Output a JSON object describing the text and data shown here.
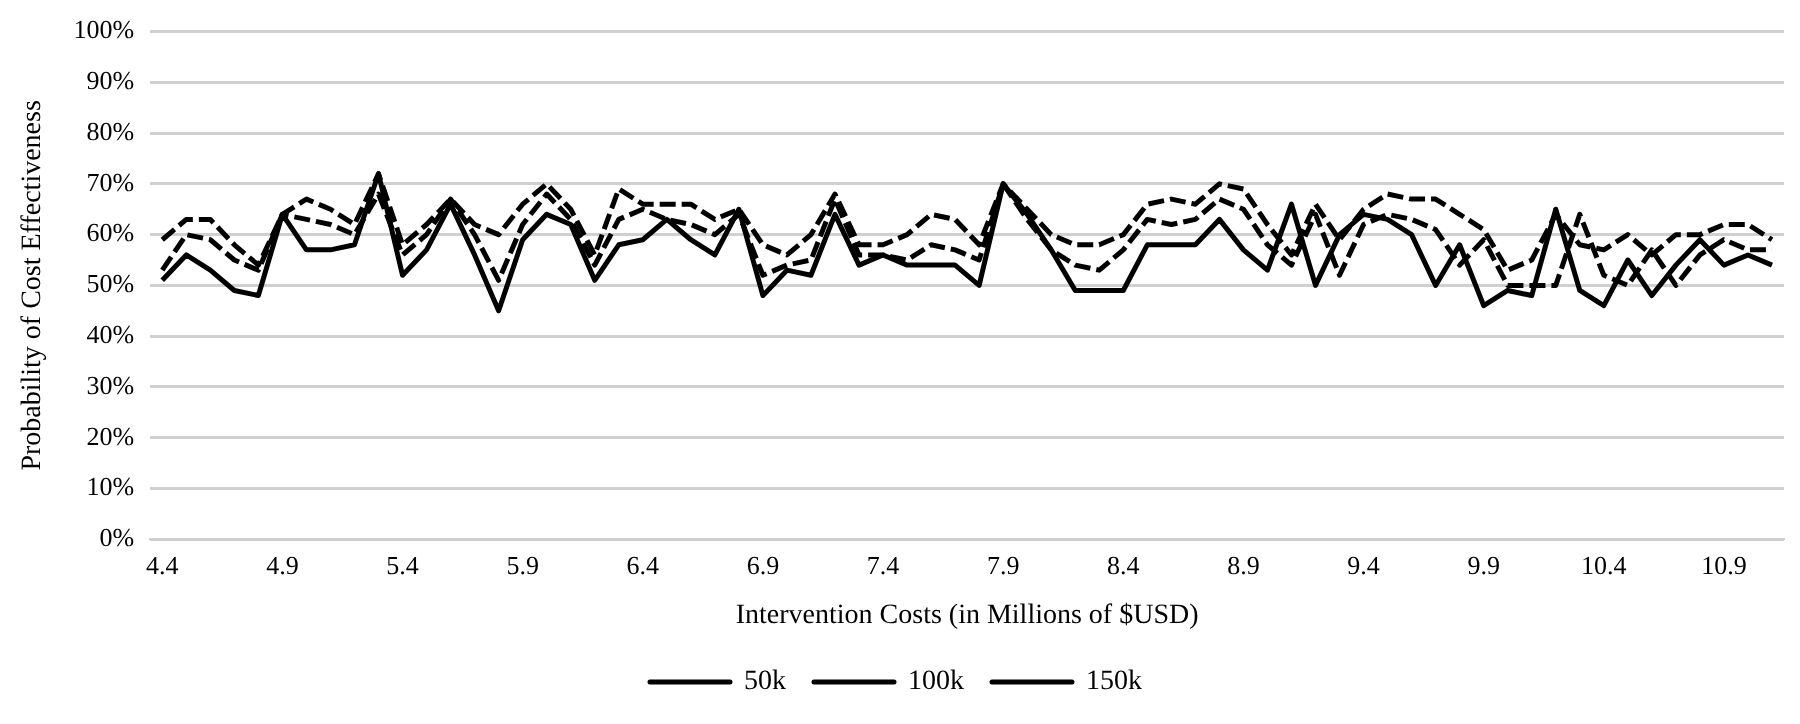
{
  "chart_data": {
    "type": "line",
    "xlabel": "Intervention Costs (in Millions of $USD)",
    "ylabel": "Probability of Cost Effectiveness",
    "categories": [
      "4.4",
      null,
      null,
      null,
      null,
      "4.9",
      null,
      null,
      null,
      null,
      "5.4",
      null,
      null,
      null,
      null,
      "5.9",
      null,
      null,
      null,
      null,
      "6.4",
      null,
      null,
      null,
      null,
      "6.9",
      null,
      null,
      null,
      null,
      "7.4",
      null,
      null,
      null,
      null,
      "7.9",
      null,
      null,
      null,
      null,
      "8.4",
      null,
      null,
      null,
      null,
      "8.9",
      null,
      null,
      null,
      null,
      "9.4",
      null,
      null,
      null,
      null,
      "9.9",
      null,
      null,
      null,
      null,
      "10.4",
      null,
      null,
      null,
      null,
      "10.9",
      null,
      null
    ],
    "series": [
      {
        "name": "50k",
        "color": "#000000",
        "line_style": "solid",
        "values": [
          51,
          56,
          53,
          49,
          48,
          64,
          57,
          57,
          58,
          72,
          52,
          57,
          66,
          56,
          45,
          59,
          64,
          62,
          51,
          58,
          59,
          63,
          59,
          56,
          65,
          48,
          53,
          52,
          64,
          54,
          56,
          54,
          54,
          54,
          50,
          70,
          64,
          57,
          49,
          49,
          49,
          58,
          58,
          58,
          63,
          57,
          53,
          66,
          50,
          60,
          64,
          63,
          60,
          50,
          58,
          46,
          49,
          48,
          65,
          49,
          46,
          55,
          48,
          54,
          59,
          54,
          56,
          54
        ]
      },
      {
        "name": "100k",
        "color": "#000000",
        "line_style": "dashed",
        "values": [
          53,
          60,
          59,
          55,
          53,
          64,
          63,
          62,
          60,
          68,
          56,
          60,
          67,
          60,
          51,
          62,
          68,
          63,
          54,
          63,
          65,
          63,
          62,
          60,
          64,
          52,
          54,
          55,
          67,
          56,
          56,
          55,
          58,
          57,
          55,
          70,
          63,
          57,
          54,
          53,
          57,
          63,
          62,
          63,
          67,
          65,
          58,
          54,
          64,
          52,
          62,
          64,
          63,
          61,
          54,
          59,
          50,
          50,
          50,
          64,
          52,
          50,
          57,
          50,
          56,
          59,
          57,
          57
        ]
      },
      {
        "name": "150k",
        "color": "#000000",
        "line_style": "dashed",
        "values": [
          59,
          63,
          63,
          58,
          54,
          64,
          67,
          65,
          62,
          72,
          58,
          62,
          67,
          62,
          60,
          66,
          70,
          65,
          56,
          69,
          66,
          66,
          66,
          63,
          65,
          58,
          56,
          60,
          68,
          58,
          58,
          60,
          64,
          63,
          58,
          70,
          65,
          60,
          58,
          58,
          60,
          66,
          67,
          66,
          70,
          69,
          62,
          56,
          66,
          59,
          65,
          68,
          67,
          67,
          64,
          61,
          53,
          55,
          64,
          58,
          57,
          60,
          56,
          60,
          60,
          62,
          62,
          59
        ]
      }
    ],
    "ylim": [
      0,
      100
    ],
    "yticks": [
      {
        "value": 0,
        "label": "0%"
      },
      {
        "value": 10,
        "label": "10%"
      },
      {
        "value": 20,
        "label": "20%"
      },
      {
        "value": 30,
        "label": "30%"
      },
      {
        "value": 40,
        "label": "40%"
      },
      {
        "value": 50,
        "label": "50%"
      },
      {
        "value": 60,
        "label": "60%"
      },
      {
        "value": 70,
        "label": "70%"
      },
      {
        "value": 80,
        "label": "80%"
      },
      {
        "value": 90,
        "label": "90%"
      },
      {
        "value": 100,
        "label": "100%"
      }
    ],
    "grid": "y",
    "legend": "bottom",
    "marker": "none"
  }
}
